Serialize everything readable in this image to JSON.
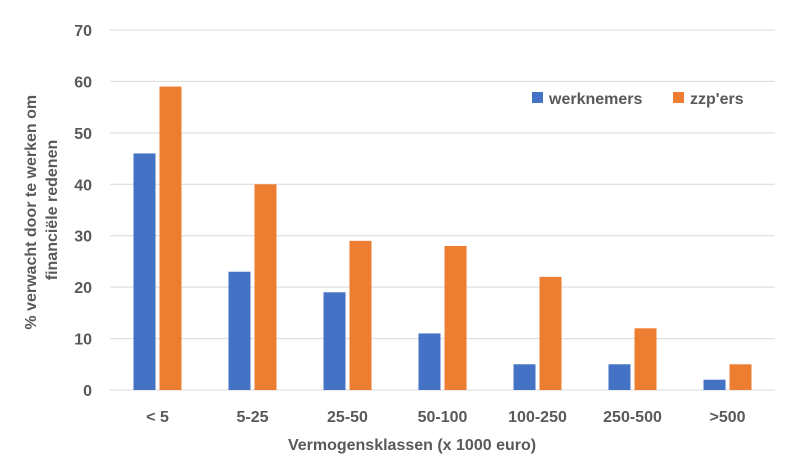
{
  "chart_data": {
    "type": "bar",
    "categories": [
      "< 5",
      "5-25",
      "25-50",
      "50-100",
      "100-250",
      "250-500",
      ">500"
    ],
    "series": [
      {
        "name": "werknemers",
        "values": [
          46,
          23,
          19,
          11,
          5,
          5,
          2
        ],
        "color": "#4472C4"
      },
      {
        "name": "zzp'ers",
        "values": [
          59,
          40,
          29,
          28,
          22,
          12,
          5
        ],
        "color": "#ED7D31"
      }
    ],
    "title": "",
    "xlabel": "Vermogensklassen (x 1000 euro)",
    "ylabel_lines": [
      "% verwacht door te werken om",
      "financiële redenen"
    ],
    "ylim": [
      0,
      70
    ],
    "yticks": [
      0,
      10,
      20,
      30,
      40,
      50,
      60,
      70
    ],
    "grid": true,
    "legend_position": "top-right"
  }
}
